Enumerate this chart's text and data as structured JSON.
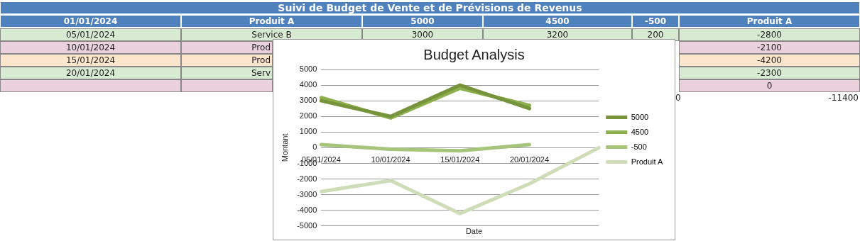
{
  "chart_data": {
    "type": "line",
    "title": "Budget Analysis",
    "xlabel": "Date",
    "ylabel": "Montant",
    "categories": [
      "05/01/2024",
      "10/01/2024",
      "15/01/2024",
      "20/01/2024",
      null
    ],
    "series": [
      {
        "name": "5000",
        "color": "#77933c",
        "values": [
          3000,
          2000,
          4000,
          2500,
          null
        ]
      },
      {
        "name": "4500",
        "color": "#8db04c",
        "values": [
          3200,
          1900,
          3800,
          2700,
          null
        ]
      },
      {
        "name": "-500",
        "color": "#a6c47a",
        "values": [
          200,
          -100,
          -200,
          200,
          null
        ]
      },
      {
        "name": "Produit A",
        "color": "#cfdcb8",
        "values": [
          -2800,
          -2100,
          -4200,
          -2300,
          0
        ]
      }
    ],
    "ylim": [
      -5000,
      5000
    ],
    "yticks": [
      -5000,
      -4000,
      -3000,
      -2000,
      -1000,
      0,
      1000,
      2000,
      3000,
      4000,
      5000
    ],
    "grid": "y",
    "legend": "right",
    "marker": "none",
    "line_style": "solid",
    "annotations": [
      "Suivi de Budget de Vente et de Prévisions de Revenus",
      "01/01/2024",
      "Produit A",
      "5000",
      "4500",
      "-500",
      "Produit A",
      "05/01/2024",
      "Service B",
      "3000",
      "3200",
      "200",
      "-2800",
      "10/01/2024",
      "Prod",
      "-2100",
      "15/01/2024",
      "Prod",
      "-4200",
      "20/01/2024",
      "Serv",
      "-2300",
      "0",
      "0",
      "-11400"
    ]
  }
}
